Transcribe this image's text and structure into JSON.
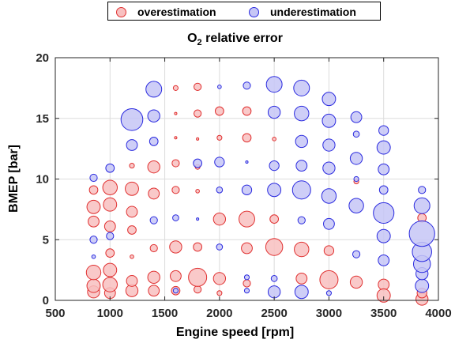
{
  "chart_data": {
    "type": "scatter",
    "title_main": "O",
    "title_sub": "2",
    "title_rest": " relative error",
    "xlabel": "Engine speed [rpm]",
    "ylabel": "BMEP [bar]",
    "xlim": [
      500,
      4000
    ],
    "ylim": [
      0,
      20
    ],
    "xticks": [
      "500",
      "1000",
      "1500",
      "2000",
      "2500",
      "3000",
      "3500",
      "4000"
    ],
    "yticks": [
      "0",
      "5",
      "10",
      "15",
      "20"
    ],
    "grid": true,
    "legend_placement": "top-center",
    "series": [
      {
        "name": "overestimation",
        "color": "#e03030",
        "fill": "#f8c0c0",
        "points": [
          [
            850,
            0.7,
            0.5
          ],
          [
            1000,
            0.6,
            0.45
          ],
          [
            1200,
            0.8,
            0.5
          ],
          [
            1400,
            0.8,
            0.45
          ],
          [
            1600,
            0.8,
            0.35
          ],
          [
            1800,
            0.9,
            0.3
          ],
          [
            2000,
            0.6,
            0.2
          ],
          [
            850,
            1.2,
            0.55
          ],
          [
            1000,
            1.3,
            0.6
          ],
          [
            1200,
            1.6,
            0.45
          ],
          [
            1400,
            1.9,
            0.5
          ],
          [
            1600,
            2.0,
            0.45
          ],
          [
            1800,
            1.9,
            0.75
          ],
          [
            2000,
            1.8,
            0.5
          ],
          [
            2250,
            1.4,
            0.3
          ],
          [
            2750,
            1.8,
            0.45
          ],
          [
            3000,
            1.7,
            0.75
          ],
          [
            3250,
            1.5,
            0.5
          ],
          [
            3500,
            1.3,
            0.45
          ],
          [
            850,
            2.3,
            0.6
          ],
          [
            1000,
            2.5,
            0.55
          ],
          [
            3500,
            0.4,
            0.55
          ],
          [
            3850,
            0.1,
            0.5
          ],
          [
            3850,
            0.6,
            0.4
          ],
          [
            1000,
            3.9,
            0.35
          ],
          [
            1200,
            3.6,
            0.15
          ],
          [
            1400,
            4.3,
            0.3
          ],
          [
            1600,
            4.4,
            0.5
          ],
          [
            1800,
            4.4,
            0.35
          ],
          [
            2250,
            4.3,
            0.45
          ],
          [
            2500,
            4.4,
            0.7
          ],
          [
            2750,
            4.2,
            0.6
          ],
          [
            3000,
            4.1,
            0.4
          ],
          [
            850,
            6.5,
            0.45
          ],
          [
            1000,
            6.1,
            0.45
          ],
          [
            1200,
            5.8,
            0.35
          ],
          [
            2000,
            6.7,
            0.5
          ],
          [
            2250,
            6.7,
            0.65
          ],
          [
            2500,
            6.7,
            0.35
          ],
          [
            3850,
            6.8,
            0.35
          ],
          [
            850,
            7.7,
            0.55
          ],
          [
            1000,
            7.9,
            0.55
          ],
          [
            1200,
            7.3,
            0.45
          ],
          [
            850,
            9.1,
            0.35
          ],
          [
            1000,
            9.3,
            0.6
          ],
          [
            1200,
            9.2,
            0.55
          ],
          [
            1400,
            8.8,
            0.45
          ],
          [
            1600,
            9.1,
            0.3
          ],
          [
            1800,
            9.0,
            0.15
          ],
          [
            3250,
            9.8,
            0.2
          ],
          [
            1200,
            11.1,
            0.2
          ],
          [
            1400,
            11.0,
            0.5
          ],
          [
            1600,
            11.3,
            0.3
          ],
          [
            1800,
            11.0,
            0.2
          ],
          [
            1600,
            13.4,
            0.1
          ],
          [
            1800,
            13.3,
            0.1
          ],
          [
            2000,
            13.4,
            0.2
          ],
          [
            2250,
            13.4,
            0.35
          ],
          [
            2500,
            13.3,
            0.15
          ],
          [
            1600,
            15.4,
            0.1
          ],
          [
            1800,
            15.4,
            0.3
          ],
          [
            2000,
            15.6,
            0.35
          ],
          [
            2250,
            15.6,
            0.35
          ],
          [
            1600,
            17.5,
            0.2
          ],
          [
            1800,
            17.6,
            0.3
          ]
        ]
      },
      {
        "name": "underestimation",
        "color": "#2a2adf",
        "fill": "#c6c6f6",
        "points": [
          [
            1600,
            0.8,
            0.2
          ],
          [
            2250,
            0.8,
            0.2
          ],
          [
            2500,
            0.7,
            0.5
          ],
          [
            2750,
            0.7,
            0.55
          ],
          [
            3000,
            0.6,
            0.2
          ],
          [
            2250,
            1.9,
            0.2
          ],
          [
            2500,
            1.8,
            0.25
          ],
          [
            3850,
            1.2,
            0.55
          ],
          [
            3850,
            2.2,
            0.5
          ],
          [
            3850,
            3.0,
            0.7
          ],
          [
            3850,
            4.0,
            0.8
          ],
          [
            3850,
            5.5,
            1.05
          ],
          [
            850,
            3.6,
            0.15
          ],
          [
            1000,
            5.3,
            0.3
          ],
          [
            850,
            5.0,
            0.3
          ],
          [
            2000,
            4.4,
            0.25
          ],
          [
            3250,
            3.8,
            0.3
          ],
          [
            3500,
            3.3,
            0.45
          ],
          [
            1400,
            6.6,
            0.3
          ],
          [
            1600,
            6.8,
            0.25
          ],
          [
            1800,
            6.7,
            0.1
          ],
          [
            2750,
            6.6,
            0.3
          ],
          [
            3000,
            6.3,
            0.45
          ],
          [
            3500,
            5.3,
            0.55
          ],
          [
            3250,
            7.8,
            0.6
          ],
          [
            3500,
            7.2,
            0.85
          ],
          [
            3850,
            7.8,
            0.65
          ],
          [
            3850,
            9.1,
            0.3
          ],
          [
            2000,
            9.1,
            0.25
          ],
          [
            2250,
            9.1,
            0.4
          ],
          [
            2500,
            9.1,
            0.55
          ],
          [
            2750,
            9.1,
            0.75
          ],
          [
            3000,
            8.6,
            0.6
          ],
          [
            3500,
            9.1,
            0.35
          ],
          [
            850,
            10.1,
            0.3
          ],
          [
            1000,
            10.9,
            0.35
          ],
          [
            1800,
            11.3,
            0.35
          ],
          [
            2000,
            11.4,
            0.4
          ],
          [
            2250,
            11.4,
            0.1
          ],
          [
            2500,
            11.1,
            0.4
          ],
          [
            2750,
            11.1,
            0.45
          ],
          [
            3000,
            10.9,
            0.5
          ],
          [
            3250,
            10.0,
            0.2
          ],
          [
            3500,
            10.8,
            0.45
          ],
          [
            1200,
            12.8,
            0.45
          ],
          [
            1400,
            13.1,
            0.35
          ],
          [
            2750,
            13.1,
            0.5
          ],
          [
            3000,
            12.8,
            0.5
          ],
          [
            3250,
            11.7,
            0.5
          ],
          [
            3250,
            13.7,
            0.25
          ],
          [
            3500,
            12.6,
            0.55
          ],
          [
            1200,
            14.9,
            0.9
          ],
          [
            1400,
            15.2,
            0.5
          ],
          [
            2500,
            15.5,
            0.5
          ],
          [
            2750,
            15.4,
            0.6
          ],
          [
            3000,
            14.8,
            0.55
          ],
          [
            3250,
            15.1,
            0.45
          ],
          [
            3500,
            14.0,
            0.4
          ],
          [
            1400,
            17.4,
            0.65
          ],
          [
            2000,
            17.6,
            0.15
          ],
          [
            2250,
            17.7,
            0.3
          ],
          [
            2500,
            17.8,
            0.65
          ],
          [
            2750,
            17.5,
            0.65
          ],
          [
            3000,
            16.6,
            0.55
          ]
        ]
      }
    ]
  }
}
